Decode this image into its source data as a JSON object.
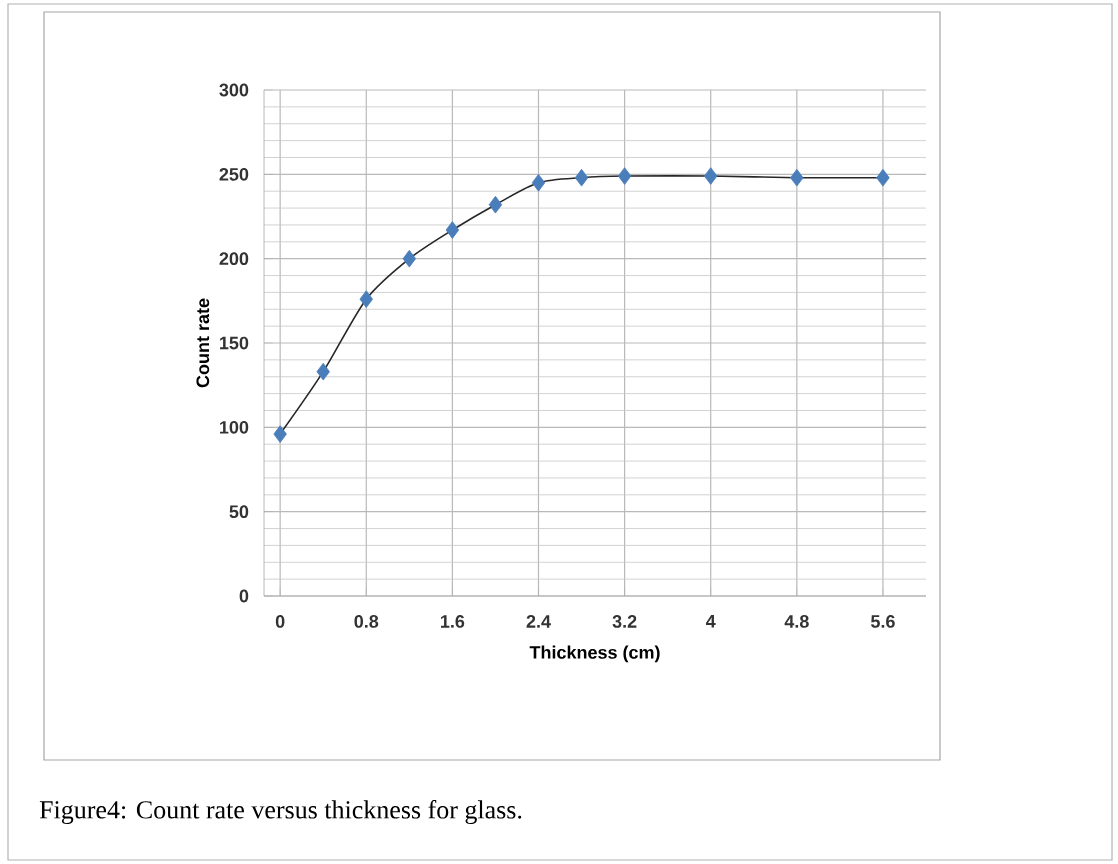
{
  "chart_data": {
    "type": "line",
    "xlabel": "Thickness (cm)",
    "ylabel": "Count rate",
    "annotations": [
      "Figure4: Count rate versus thickness for glass."
    ],
    "x": [
      0,
      0.4,
      0.8,
      1.2,
      1.6,
      2.0,
      2.4,
      2.8,
      3.2,
      4,
      4.8,
      5.6
    ],
    "series": [
      {
        "color": "#4a7ebb",
        "values": [
          96,
          133,
          176,
          200,
          217,
          232,
          245,
          248,
          249,
          249,
          248,
          248
        ]
      }
    ],
    "xlim": [
      -0.15,
      6.0
    ],
    "xticks": [
      0,
      0.8,
      1.6,
      2.4,
      3.2,
      4,
      4.8,
      5.6
    ],
    "ylim": [
      0,
      300
    ],
    "yticks": [
      0,
      50,
      100,
      150,
      200,
      250,
      300
    ],
    "grid": true,
    "marker": "diamond",
    "line_style": "solid"
  }
}
